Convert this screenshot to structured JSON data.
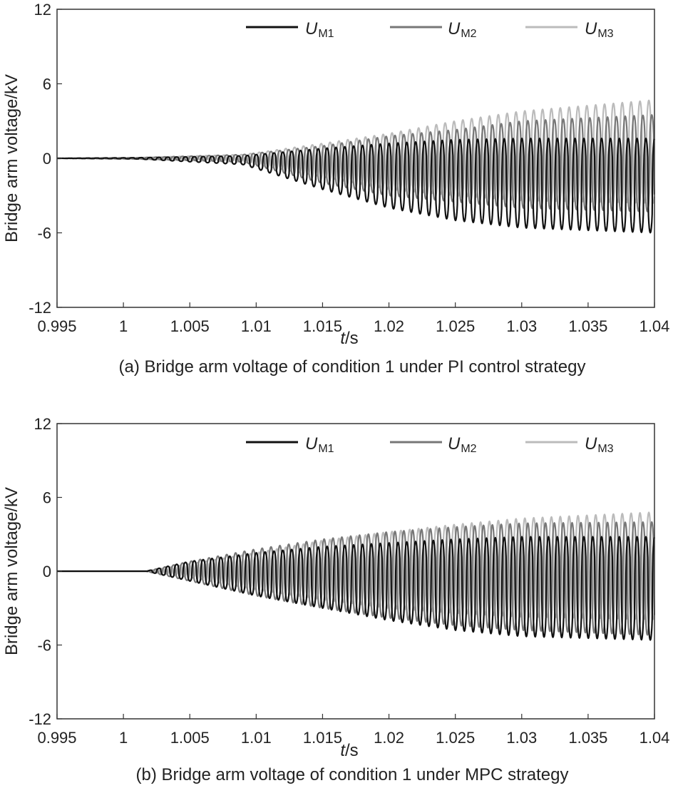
{
  "chart_data": [
    {
      "type": "line",
      "caption": "(a) Bridge arm voltage of condition 1 under PI control strategy",
      "xlabel_italic": "t",
      "xlabel_rest": "/s",
      "ylabel": "Bridge arm voltage/kV",
      "xlim": [
        0.995,
        1.04
      ],
      "ylim": [
        -12,
        12
      ],
      "xticks": [
        0.995,
        1,
        1.005,
        1.01,
        1.015,
        1.02,
        1.025,
        1.03,
        1.035,
        1.04
      ],
      "xtick_labels": [
        "0.995",
        "1",
        "1.005",
        "1.01",
        "1.015",
        "1.02",
        "1.025",
        "1.03",
        "1.035",
        "1.04"
      ],
      "yticks": [
        12,
        6,
        0,
        -6,
        -12
      ],
      "ytick_labels": [
        "12",
        "6",
        "0",
        "-6",
        "-12"
      ],
      "oscillation_period_s": 0.000667,
      "series": [
        {
          "name": "UM1",
          "label_main": "U",
          "label_sub": "M1",
          "color": "#111111",
          "x": [
            0.995,
            1.001,
            1.009,
            1.015,
            1.02,
            1.025,
            1.03,
            1.04
          ],
          "upper": [
            0,
            0.05,
            0.2,
            0.8,
            1.2,
            1.5,
            1.6,
            1.6
          ],
          "lower": [
            0,
            -0.05,
            -0.5,
            -2.5,
            -4.0,
            -5.0,
            -5.6,
            -6.0
          ]
        },
        {
          "name": "UM2",
          "label_main": "U",
          "label_sub": "M2",
          "color": "#777777",
          "x": [
            0.995,
            1.001,
            1.009,
            1.015,
            1.02,
            1.025,
            1.03,
            1.04
          ],
          "upper": [
            0,
            0.05,
            0.3,
            1.0,
            1.8,
            2.3,
            3.0,
            3.5
          ],
          "lower": [
            0,
            -0.05,
            -0.3,
            -2.0,
            -3.0,
            -3.5,
            -4.0,
            -4.3
          ]
        },
        {
          "name": "UM3",
          "label_main": "U",
          "label_sub": "M3",
          "color": "#bbbbbb",
          "x": [
            0.995,
            1.001,
            1.009,
            1.015,
            1.02,
            1.025,
            1.03,
            1.04
          ],
          "upper": [
            0,
            0.05,
            0.3,
            1.2,
            2.0,
            3.0,
            3.8,
            4.7
          ],
          "lower": [
            0,
            -0.05,
            -0.3,
            -1.5,
            -2.5,
            -3.0,
            -3.4,
            -3.6
          ]
        }
      ]
    },
    {
      "type": "line",
      "caption": "(b) Bridge arm voltage of condition 1 under MPC strategy",
      "xlabel_italic": "t",
      "xlabel_rest": "/s",
      "ylabel": "Bridge arm voltage/kV",
      "xlim": [
        0.995,
        1.04
      ],
      "ylim": [
        -12,
        12
      ],
      "xticks": [
        0.995,
        1,
        1.005,
        1.01,
        1.015,
        1.02,
        1.025,
        1.03,
        1.035,
        1.04
      ],
      "xtick_labels": [
        "0.995",
        "1",
        "1.005",
        "1.01",
        "1.015",
        "1.02",
        "1.025",
        "1.03",
        "1.035",
        "1.04"
      ],
      "yticks": [
        12,
        6,
        0,
        -6,
        -12
      ],
      "ytick_labels": [
        "12",
        "6",
        "0",
        "-6",
        "-12"
      ],
      "oscillation_period_s": 0.000667,
      "series": [
        {
          "name": "UM1",
          "label_main": "U",
          "label_sub": "M1",
          "color": "#111111",
          "x": [
            0.995,
            1.0017,
            1.005,
            1.01,
            1.015,
            1.02,
            1.025,
            1.03,
            1.04
          ],
          "upper": [
            0,
            0,
            0.8,
            1.5,
            2.0,
            2.3,
            2.6,
            2.8,
            2.8
          ],
          "lower": [
            0,
            0,
            -0.8,
            -2.0,
            -3.0,
            -4.0,
            -4.8,
            -5.3,
            -5.6
          ]
        },
        {
          "name": "UM2",
          "label_main": "U",
          "label_sub": "M2",
          "color": "#777777",
          "x": [
            0.995,
            1.0017,
            1.005,
            1.01,
            1.015,
            1.02,
            1.025,
            1.03,
            1.04
          ],
          "upper": [
            0,
            0,
            0.8,
            1.8,
            2.6,
            3.2,
            3.6,
            3.9,
            4.0
          ],
          "lower": [
            0,
            0,
            -0.8,
            -2.0,
            -3.0,
            -3.8,
            -4.4,
            -4.8,
            -5.2
          ]
        },
        {
          "name": "UM3",
          "label_main": "U",
          "label_sub": "M3",
          "color": "#bbbbbb",
          "x": [
            0.995,
            1.0017,
            1.005,
            1.01,
            1.015,
            1.02,
            1.025,
            1.03,
            1.04
          ],
          "upper": [
            0,
            0,
            0.6,
            1.5,
            2.5,
            3.2,
            3.8,
            4.3,
            4.8
          ],
          "lower": [
            0,
            0,
            -0.5,
            -1.5,
            -2.3,
            -3.0,
            -3.4,
            -3.7,
            -3.9
          ]
        }
      ]
    }
  ]
}
